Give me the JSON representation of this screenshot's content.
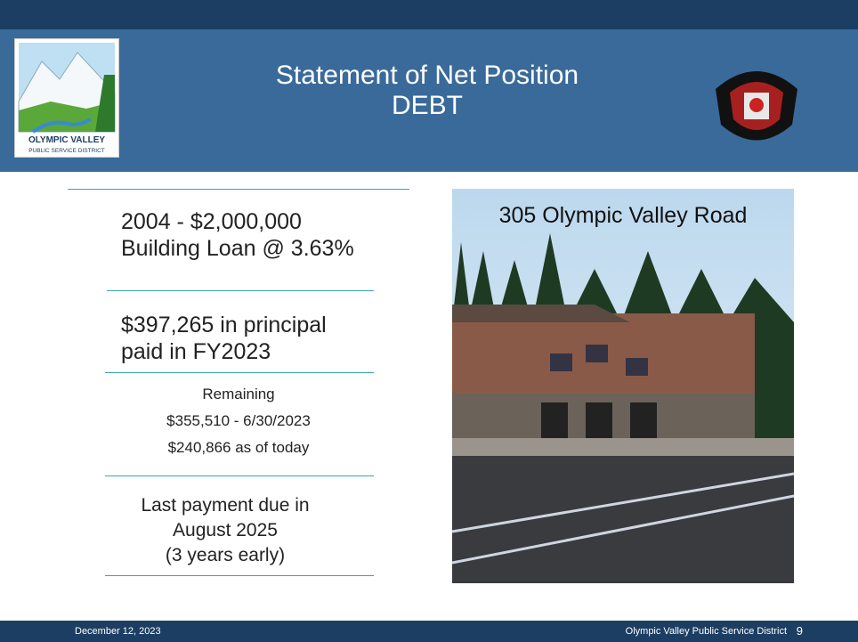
{
  "header": {
    "title_line1": "Statement of Net Position",
    "title_line2": "DEBT",
    "logo_left_text": "OLYMPIC VALLEY",
    "logo_left_subtext": "PUBLIC SERVICE DISTRICT"
  },
  "content": {
    "loan_line1": "2004 - $2,000,000",
    "loan_line2": "Building Loan @ 3.63%",
    "principal_line1": "$397,265 in principal",
    "principal_line2": "paid in FY2023",
    "remaining_label": "Remaining",
    "remaining_june": "$355,510 - 6/30/2023",
    "remaining_today": "$240,866 as of today",
    "last_line1": "Last payment due in",
    "last_line2": "August 2025",
    "last_line3": "(3 years early)"
  },
  "photo": {
    "caption": "305 Olympic Valley Road"
  },
  "footer": {
    "date": "December 12, 2023",
    "org": "Olympic Valley Public Service District",
    "page": "9"
  }
}
